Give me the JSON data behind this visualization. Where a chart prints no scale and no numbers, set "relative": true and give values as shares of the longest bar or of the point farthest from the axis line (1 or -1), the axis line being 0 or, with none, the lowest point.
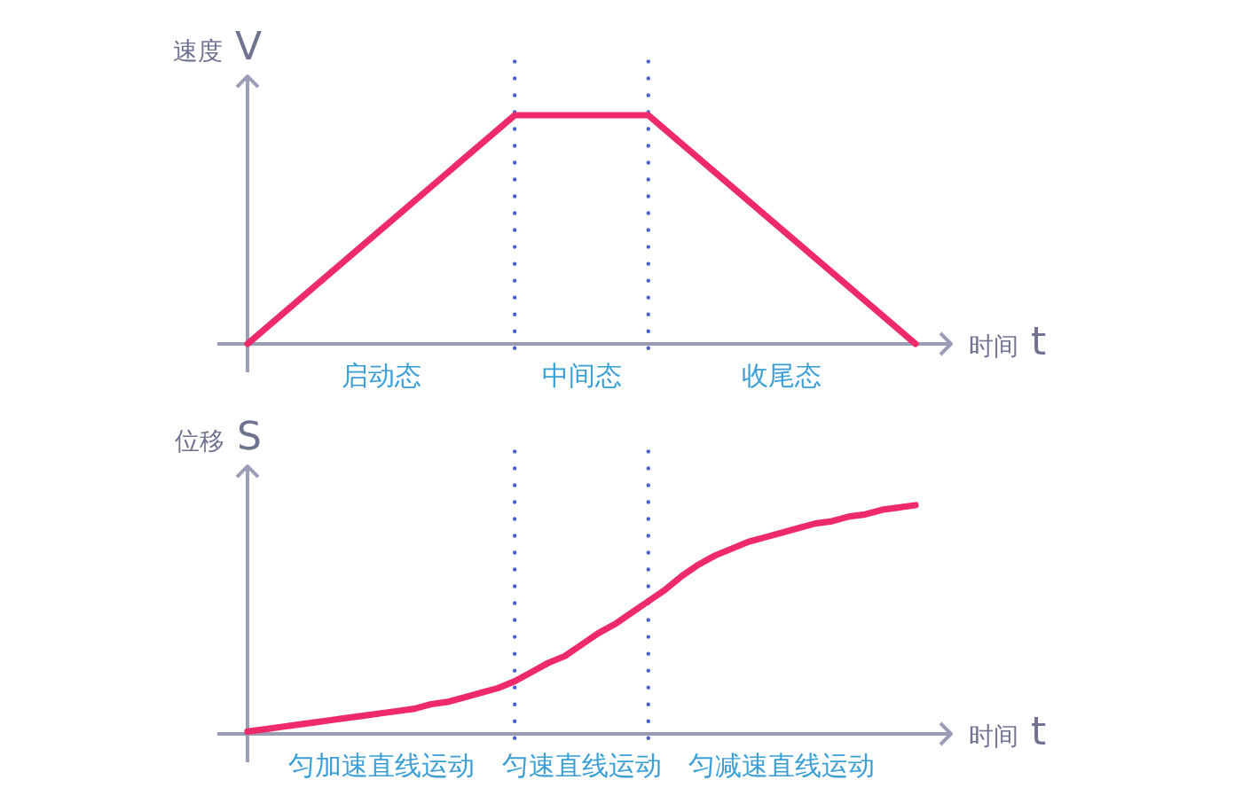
{
  "chart_data": [
    {
      "type": "line",
      "relative": true,
      "categories": [
        null,
        null,
        null,
        null,
        null,
        null
      ],
      "values": [
        0,
        0.5,
        1,
        1,
        0.5,
        0
      ],
      "color": "#ee2a6b",
      "ylabel": "速度 V",
      "xlabel": "时间 t",
      "annotations": [
        "启动态",
        "中间态",
        "收尾态"
      ]
    },
    {
      "type": "line",
      "relative": true,
      "categories": [
        null,
        null,
        null,
        null,
        null,
        null,
        null,
        null,
        null,
        null,
        null,
        null,
        null,
        null,
        null,
        null,
        null,
        null,
        null,
        null,
        null,
        null,
        null,
        null,
        null,
        null,
        null,
        null,
        null,
        null,
        null,
        null,
        null,
        null,
        null,
        null,
        null,
        null,
        null,
        null,
        null
      ],
      "values": [
        0.01,
        0.02,
        0.03,
        0.04,
        0.05,
        0.06,
        0.07,
        0.08,
        0.09,
        0.1,
        0.11,
        0.13,
        0.14,
        0.16,
        0.18,
        0.2,
        0.23,
        0.27,
        0.31,
        0.34,
        0.39,
        0.44,
        0.48,
        0.53,
        0.58,
        0.63,
        0.69,
        0.74,
        0.78,
        0.81,
        0.84,
        0.86,
        0.88,
        0.9,
        0.92,
        0.93,
        0.95,
        0.96,
        0.98,
        0.99,
        1.0
      ],
      "color": "#ee2a6b",
      "ylabel": "位移 S",
      "xlabel": "时间 t",
      "annotations": [
        "匀加速直线运动",
        "匀速直线运动",
        "匀减速直线运动"
      ]
    }
  ]
}
